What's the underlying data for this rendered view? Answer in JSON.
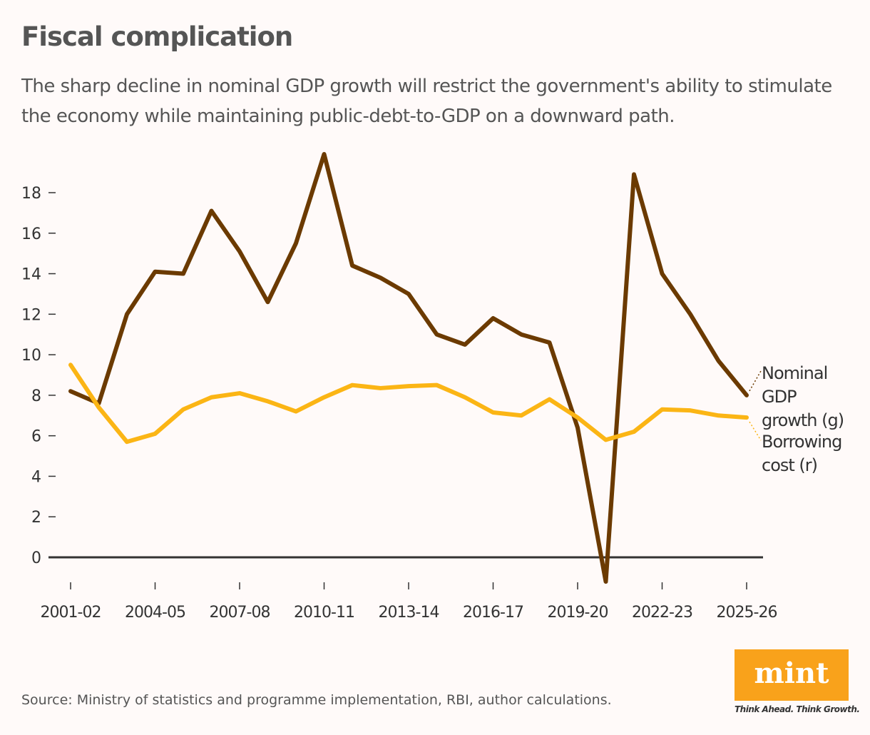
{
  "chart_data": {
    "type": "line",
    "title": "Fiscal complication",
    "subtitle": "The sharp decline in nominal GDP growth will restrict the government's ability to stimulate the economy while maintaining public-debt-to-GDP on a downward path.",
    "x": [
      "2001-02",
      "2002-03",
      "2003-04",
      "2004-05",
      "2005-06",
      "2006-07",
      "2007-08",
      "2008-09",
      "2009-10",
      "2010-11",
      "2011-12",
      "2012-13",
      "2013-14",
      "2014-15",
      "2015-16",
      "2016-17",
      "2017-18",
      "2018-19",
      "2019-20",
      "2020-21",
      "2021-22",
      "2022-23",
      "2023-24",
      "2024-25",
      "2025-26"
    ],
    "x_tick_labels": [
      "2001-02",
      "2004-05",
      "2007-08",
      "2010-11",
      "2013-14",
      "2016-17",
      "2019-20",
      "2022-23",
      "2025-26"
    ],
    "y_ticks": [
      0,
      2,
      4,
      6,
      8,
      10,
      12,
      14,
      16,
      18
    ],
    "ylim": [
      -1.5,
      20
    ],
    "grid": false,
    "legend": "direct labels at right end of lines",
    "series": [
      {
        "name": "Nominal GDP growth (g)",
        "color": "#6b3a00",
        "values": [
          8.2,
          7.6,
          12.0,
          14.1,
          14.0,
          17.1,
          15.1,
          12.6,
          15.5,
          19.9,
          14.4,
          13.8,
          13.0,
          11.0,
          10.5,
          11.8,
          11.0,
          10.6,
          6.4,
          -1.2,
          18.9,
          14.0,
          12.0,
          9.7,
          8.0
        ]
      },
      {
        "name": "Borrowing cost (r)",
        "color": "#fbb515",
        "values": [
          9.5,
          7.4,
          5.7,
          6.1,
          7.3,
          7.9,
          8.1,
          7.7,
          7.2,
          7.9,
          8.5,
          8.35,
          8.45,
          8.5,
          7.9,
          7.15,
          7.0,
          7.8,
          6.9,
          5.8,
          6.2,
          7.3,
          7.25,
          7.0,
          6.9
        ]
      }
    ]
  },
  "labels": {
    "series0_lines": [
      "Nominal",
      "GDP",
      "growth (g)"
    ],
    "series1_lines": [
      "Borrowing",
      "cost (r)"
    ]
  },
  "footer": {
    "source": "Source: Ministry of statistics and programme implementation, RBI, author calculations.",
    "logo": "mint",
    "tagline": "Think Ahead. Think Growth."
  }
}
